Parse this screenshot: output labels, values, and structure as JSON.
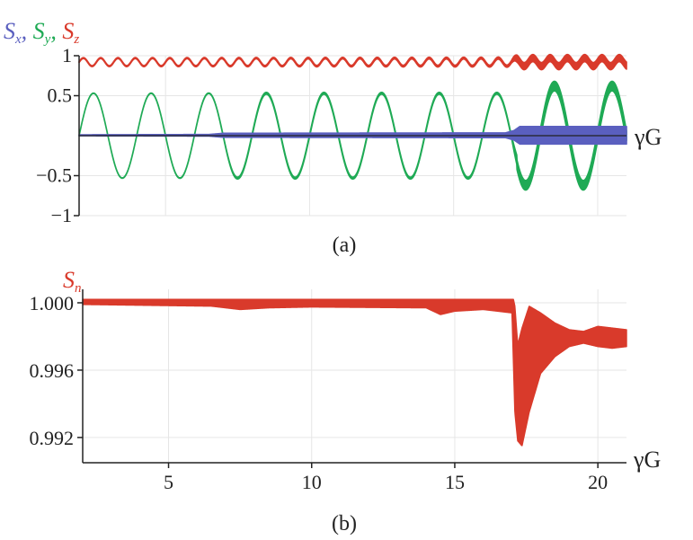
{
  "chart_data": [
    {
      "panel_label": "(a)",
      "type": "line",
      "xlabel": "γG",
      "ylabel_parts": [
        {
          "symbol": "S",
          "sub": "x",
          "color": "#5a5fbf"
        },
        {
          "symbol": "S",
          "sub": "y",
          "color": "#1faa55"
        },
        {
          "symbol": "S",
          "sub": "z",
          "color": "#d93a2b"
        }
      ],
      "ylabel_sep": ", ",
      "xlim": [
        2,
        21
      ],
      "ylim": [
        -1,
        1
      ],
      "yticks": [
        1,
        0.5,
        -0.5,
        -1
      ],
      "ytick_labels": [
        "1",
        "0.5",
        "−0.5",
        "−1"
      ],
      "xgrid": [
        5,
        10,
        15,
        20
      ],
      "grid": true,
      "axis_line_y": 0,
      "series": [
        {
          "color": "#1faa55",
          "kind": "oscillation",
          "center": 0,
          "amplitude": 0.53,
          "period": 2.0,
          "phase_at_x": 2.0,
          "band": [
            [
              2,
              0.002
            ],
            [
              6.8,
              0.004
            ],
            [
              7.5,
              0.012
            ],
            [
              17.0,
              0.012
            ],
            [
              17.2,
              0.06
            ],
            [
              21,
              0.06
            ]
          ],
          "amp_after": [
            [
              17.2,
              0.62
            ]
          ]
        },
        {
          "color": "#5a5fbf",
          "kind": "band",
          "center": 0.005,
          "band": [
            [
              2,
              0.006
            ],
            [
              6.5,
              0.01
            ],
            [
              7.0,
              0.025
            ],
            [
              16.8,
              0.03
            ],
            [
              17.1,
              0.06
            ],
            [
              17.3,
              0.11
            ],
            [
              21,
              0.11
            ]
          ]
        },
        {
          "color": "#d93a2b",
          "kind": "oscillation",
          "center": 0.92,
          "amplitude": 0.05,
          "period": 0.6,
          "phase_at_x": 2.0,
          "band": [
            [
              2,
              0.006
            ],
            [
              16,
              0.012
            ],
            [
              17.0,
              0.015
            ],
            [
              17.2,
              0.045
            ],
            [
              21,
              0.045
            ]
          ]
        }
      ]
    },
    {
      "panel_label": "(b)",
      "type": "line",
      "xlabel": "γG",
      "ylabel_parts": [
        {
          "symbol": "S",
          "sub": "n",
          "color": "#d93a2b"
        }
      ],
      "xlim": [
        2,
        21
      ],
      "ylim": [
        0.9905,
        1.0008
      ],
      "yticks": [
        1.0,
        0.996,
        0.992
      ],
      "ytick_labels": [
        "1.000",
        "0.996",
        "0.992"
      ],
      "xticks": [
        5,
        10,
        15,
        20
      ],
      "xtick_labels": [
        "5",
        "10",
        "15",
        "20"
      ],
      "xgrid": [
        5,
        10,
        15,
        20
      ],
      "grid": true,
      "series": [
        {
          "color": "#d93a2b",
          "kind": "envelope",
          "upper": [
            [
              2,
              1.0002
            ],
            [
              17.05,
              1.0002
            ],
            [
              17.1,
              0.9998
            ],
            [
              17.2,
              0.9975
            ],
            [
              17.35,
              0.9985
            ],
            [
              17.6,
              0.9998
            ],
            [
              18.0,
              0.9994
            ],
            [
              18.5,
              0.9988
            ],
            [
              19.0,
              0.9984
            ],
            [
              19.5,
              0.9983
            ],
            [
              20.0,
              0.9986
            ],
            [
              20.5,
              0.9985
            ],
            [
              21,
              0.9984
            ]
          ],
          "lower": [
            [
              2,
              0.9999
            ],
            [
              6.5,
              0.9998
            ],
            [
              7.5,
              0.9996
            ],
            [
              8.5,
              0.9997
            ],
            [
              10.0,
              0.99975
            ],
            [
              14.0,
              0.9997
            ],
            [
              14.5,
              0.9993
            ],
            [
              15.0,
              0.9995
            ],
            [
              16.0,
              0.9996
            ],
            [
              17.0,
              0.9994
            ],
            [
              17.1,
              0.9935
            ],
            [
              17.2,
              0.9918
            ],
            [
              17.35,
              0.9915
            ],
            [
              17.6,
              0.9935
            ],
            [
              18.0,
              0.9958
            ],
            [
              18.5,
              0.9968
            ],
            [
              19.0,
              0.9974
            ],
            [
              19.5,
              0.9976
            ],
            [
              20.0,
              0.9974
            ],
            [
              20.5,
              0.9973
            ],
            [
              21,
              0.9974
            ]
          ]
        }
      ]
    }
  ]
}
